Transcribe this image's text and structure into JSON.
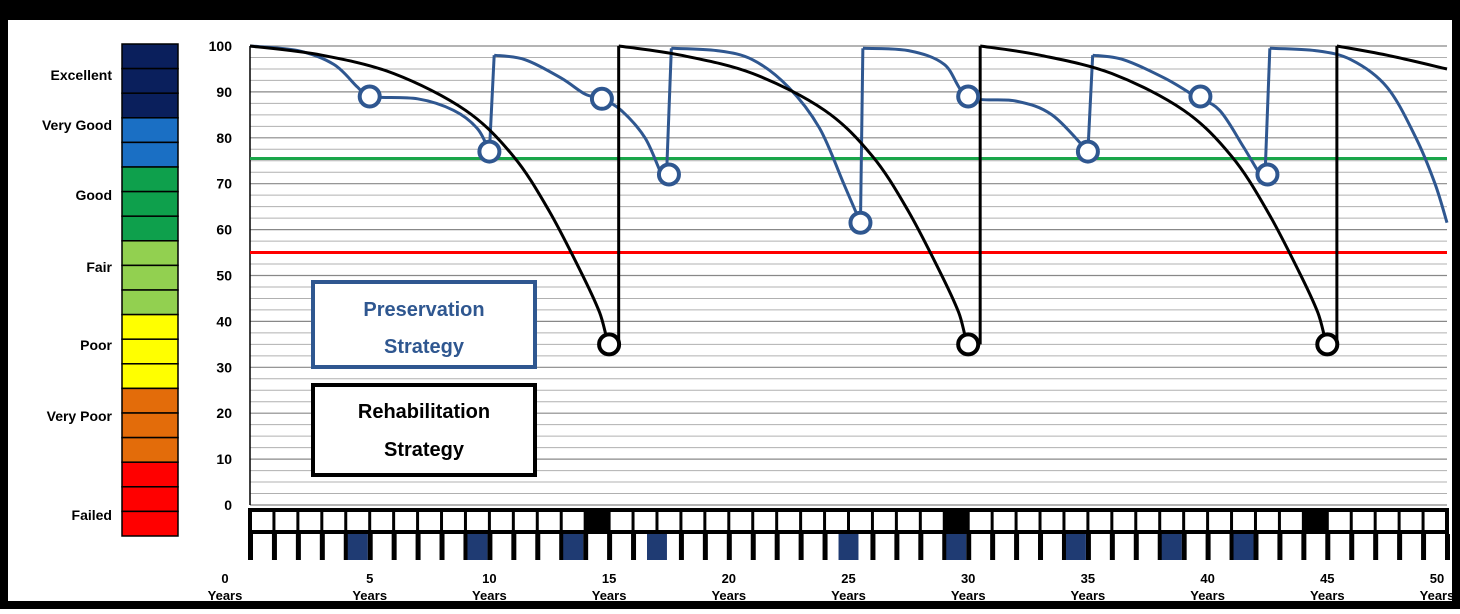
{
  "chart_data": {
    "type": "line",
    "title": "",
    "xlabel": "",
    "ylabel": "",
    "ylim": [
      0,
      100
    ],
    "xlim": [
      0,
      50
    ],
    "yticks": [
      "100",
      "90",
      "80",
      "70",
      "60",
      "50",
      "40",
      "30",
      "20",
      "10",
      "0"
    ],
    "xticks": [
      {
        "num": "0",
        "unit": "Years"
      },
      {
        "num": "5",
        "unit": "Years"
      },
      {
        "num": "10",
        "unit": "Years"
      },
      {
        "num": "15",
        "unit": "Years"
      },
      {
        "num": "20",
        "unit": "Years"
      },
      {
        "num": "25",
        "unit": "Years"
      },
      {
        "num": "30",
        "unit": "Years"
      },
      {
        "num": "35",
        "unit": "Years"
      },
      {
        "num": "40",
        "unit": "Years"
      },
      {
        "num": "45",
        "unit": "Years"
      },
      {
        "num": "50",
        "unit": "Years"
      }
    ],
    "condition_scale": {
      "labels": [
        "Excellent",
        "Very Good",
        "Good",
        "Fair",
        "Poor",
        "Very Poor",
        "Failed"
      ],
      "colors": [
        "#0a1f5c",
        "#0a1f5c",
        "#0a1f5c",
        "#1a6fc4",
        "#1a6fc4",
        "#0ea04c",
        "#0ea04c",
        "#0ea04c",
        "#92d050",
        "#92d050",
        "#92d050",
        "#ffff00",
        "#ffff00",
        "#ffff00",
        "#e36c0a",
        "#e36c0a",
        "#e36c0a",
        "#ff0000",
        "#ff0000",
        "#ff0000"
      ]
    },
    "threshold_lines": [
      {
        "value": 75.5,
        "color": "#1aa64a"
      },
      {
        "value": 55,
        "color": "#ff0000"
      }
    ],
    "series": [
      {
        "name": "Preservation Strategy",
        "color": "#2f5790",
        "segments": [
          [
            [
              0,
              100
            ],
            [
              2,
              99
            ],
            [
              3.5,
              96
            ],
            [
              4.5,
              91
            ],
            [
              5,
              89
            ],
            [
              7,
              88.5
            ],
            [
              8.5,
              86
            ],
            [
              9.5,
              82
            ],
            [
              10,
              77
            ]
          ],
          [
            [
              10.2,
              98
            ],
            [
              11.5,
              97
            ],
            [
              13,
              93
            ],
            [
              14,
              89.5
            ],
            [
              14.7,
              88.5
            ],
            [
              15.5,
              86
            ],
            [
              16.5,
              80
            ],
            [
              17.2,
              72
            ],
            [
              17.4,
              72
            ]
          ],
          [
            [
              17.6,
              99.5
            ],
            [
              19.5,
              99
            ],
            [
              21,
              97
            ],
            [
              22.5,
              91
            ],
            [
              23.8,
              82
            ],
            [
              24.8,
              70
            ],
            [
              25.5,
              61.5
            ]
          ],
          [
            [
              25.6,
              99.5
            ],
            [
              27.5,
              99
            ],
            [
              29,
              96
            ],
            [
              30,
              89
            ],
            [
              32,
              88
            ],
            [
              33.5,
              85
            ],
            [
              35,
              77
            ]
          ],
          [
            [
              35.2,
              98
            ],
            [
              36.5,
              97
            ],
            [
              38.2,
              93
            ],
            [
              39.5,
              89
            ],
            [
              40.5,
              86
            ],
            [
              41.5,
              78
            ],
            [
              42.2,
              72
            ],
            [
              42.4,
              72
            ]
          ],
          [
            [
              42.6,
              99.5
            ],
            [
              44.5,
              99
            ],
            [
              46,
              97
            ],
            [
              47.5,
              91
            ],
            [
              48.7,
              80
            ],
            [
              49.5,
              70
            ],
            [
              50,
              61.5
            ]
          ]
        ],
        "markers": [
          [
            5,
            89
          ],
          [
            10,
            77
          ],
          [
            14.7,
            88.5
          ],
          [
            17.5,
            72
          ],
          [
            25.5,
            61.5
          ],
          [
            30,
            89
          ],
          [
            35,
            77
          ],
          [
            39.7,
            89
          ],
          [
            42.5,
            72
          ]
        ]
      },
      {
        "name": "Rehabilitation Strategy",
        "color": "#000000",
        "segments": [
          [
            [
              0,
              100
            ],
            [
              3,
              98
            ],
            [
              6,
              94
            ],
            [
              9,
              86
            ],
            [
              11,
              76
            ],
            [
              12.5,
              64
            ],
            [
              13.8,
              51
            ],
            [
              14.6,
              42
            ],
            [
              15,
              35
            ],
            [
              15.4,
              35
            ]
          ],
          [
            [
              15.4,
              100
            ],
            [
              18,
              98
            ],
            [
              21,
              94
            ],
            [
              24,
              86
            ],
            [
              26,
              76
            ],
            [
              27.5,
              64
            ],
            [
              28.8,
              51
            ],
            [
              29.6,
              42
            ],
            [
              30,
              35
            ],
            [
              30.5,
              35
            ]
          ],
          [
            [
              30.5,
              100
            ],
            [
              33,
              98
            ],
            [
              36,
              94
            ],
            [
              39,
              86
            ],
            [
              41,
              76
            ],
            [
              42.5,
              64
            ],
            [
              43.8,
              51
            ],
            [
              44.6,
              42
            ],
            [
              45,
              35
            ],
            [
              45.4,
              35
            ]
          ],
          [
            [
              45.4,
              100
            ],
            [
              47.5,
              98
            ],
            [
              50,
              95
            ]
          ]
        ],
        "markers": [
          [
            15,
            35
          ],
          [
            30,
            35
          ],
          [
            45,
            35
          ]
        ]
      }
    ],
    "legend_boxes": [
      {
        "line1": "Preservation",
        "line2": "Strategy",
        "color": "#2f5790"
      },
      {
        "line1": "Rehabilitation",
        "line2": "Strategy",
        "color": "#000000"
      }
    ],
    "timeline": {
      "top_row_black_years": [
        15,
        30,
        45
      ],
      "bottom_row_blue_years": [
        5,
        10,
        14,
        17.5,
        25.5,
        30,
        35,
        39,
        42
      ]
    }
  }
}
